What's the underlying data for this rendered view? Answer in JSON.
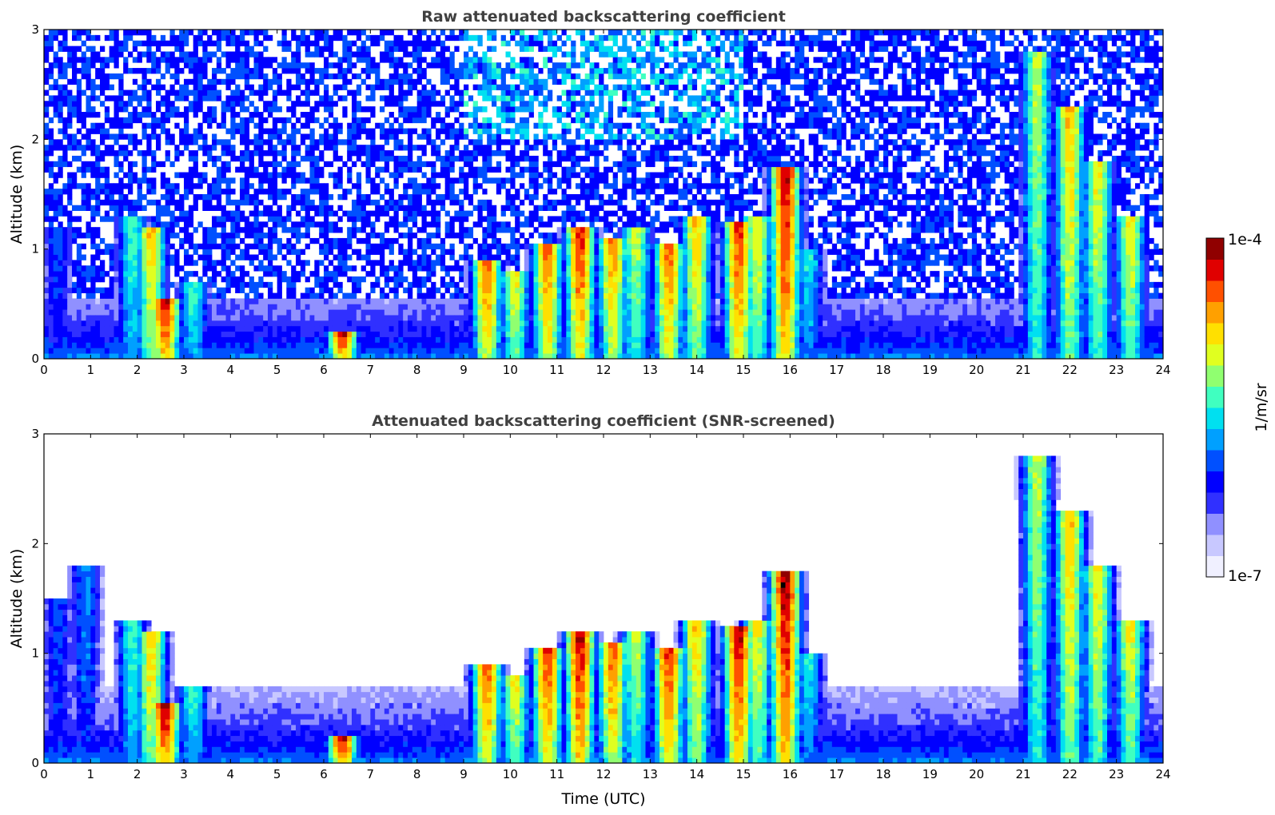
{
  "chart_data": [
    {
      "type": "heatmap",
      "title": "Raw attenuated backscattering coefficient",
      "xlabel": "",
      "ylabel": "Altitude (km)",
      "xlim": [
        0,
        24
      ],
      "ylim": [
        0,
        3
      ],
      "xticks": [
        0,
        1,
        2,
        3,
        4,
        5,
        6,
        7,
        8,
        9,
        10,
        11,
        12,
        13,
        14,
        15,
        16,
        17,
        18,
        19,
        20,
        21,
        22,
        23,
        24
      ],
      "yticks": [
        0,
        1,
        2,
        3
      ],
      "screened": false,
      "features": [
        {
          "t": 0.3,
          "top": 1.2,
          "intensity": 0.35
        },
        {
          "t": 1.9,
          "top": 1.3,
          "intensity": 0.55
        },
        {
          "t": 2.3,
          "top": 1.2,
          "intensity": 0.75
        },
        {
          "t": 2.6,
          "top": 0.55,
          "intensity": 0.95
        },
        {
          "t": 3.2,
          "top": 0.7,
          "intensity": 0.55
        },
        {
          "t": 6.4,
          "top": 0.25,
          "intensity": 0.95
        },
        {
          "t": 9.5,
          "top": 0.9,
          "intensity": 0.85
        },
        {
          "t": 10.1,
          "top": 0.8,
          "intensity": 0.7
        },
        {
          "t": 10.8,
          "top": 1.05,
          "intensity": 0.85
        },
        {
          "t": 11.5,
          "top": 1.2,
          "intensity": 0.9
        },
        {
          "t": 12.2,
          "top": 1.1,
          "intensity": 0.8
        },
        {
          "t": 12.7,
          "top": 1.2,
          "intensity": 0.65
        },
        {
          "t": 13.4,
          "top": 1.05,
          "intensity": 0.85
        },
        {
          "t": 14.0,
          "top": 1.3,
          "intensity": 0.75
        },
        {
          "t": 14.9,
          "top": 1.25,
          "intensity": 0.9
        },
        {
          "t": 15.3,
          "top": 1.3,
          "intensity": 0.7
        },
        {
          "t": 15.9,
          "top": 1.75,
          "intensity": 0.95
        },
        {
          "t": 16.4,
          "top": 1.0,
          "intensity": 0.5
        },
        {
          "t": 21.3,
          "top": 2.8,
          "intensity": 0.65
        },
        {
          "t": 22.0,
          "top": 2.3,
          "intensity": 0.75
        },
        {
          "t": 22.6,
          "top": 1.8,
          "intensity": 0.7
        },
        {
          "t": 23.3,
          "top": 1.3,
          "intensity": 0.7
        }
      ]
    },
    {
      "type": "heatmap",
      "title": "Attenuated backscattering coefficient (SNR-screened)",
      "xlabel": "Time (UTC)",
      "ylabel": "Altitude (km)",
      "xlim": [
        0,
        24
      ],
      "ylim": [
        0,
        3
      ],
      "xticks": [
        0,
        1,
        2,
        3,
        4,
        5,
        6,
        7,
        8,
        9,
        10,
        11,
        12,
        13,
        14,
        15,
        16,
        17,
        18,
        19,
        20,
        21,
        22,
        23,
        24
      ],
      "yticks": [
        0,
        1,
        2,
        3
      ],
      "screened": true,
      "features": [
        {
          "t": 0.3,
          "top": 1.5,
          "intensity": 0.35
        },
        {
          "t": 0.9,
          "top": 1.8,
          "intensity": 0.4
        },
        {
          "t": 1.9,
          "top": 1.3,
          "intensity": 0.55
        },
        {
          "t": 2.3,
          "top": 1.2,
          "intensity": 0.75
        },
        {
          "t": 2.6,
          "top": 0.55,
          "intensity": 0.98
        },
        {
          "t": 3.2,
          "top": 0.7,
          "intensity": 0.55
        },
        {
          "t": 6.4,
          "top": 0.25,
          "intensity": 0.98
        },
        {
          "t": 9.5,
          "top": 0.9,
          "intensity": 0.85
        },
        {
          "t": 10.1,
          "top": 0.8,
          "intensity": 0.7
        },
        {
          "t": 10.8,
          "top": 1.05,
          "intensity": 0.9
        },
        {
          "t": 11.5,
          "top": 1.2,
          "intensity": 0.95
        },
        {
          "t": 12.2,
          "top": 1.1,
          "intensity": 0.85
        },
        {
          "t": 12.7,
          "top": 1.2,
          "intensity": 0.65
        },
        {
          "t": 13.4,
          "top": 1.05,
          "intensity": 0.9
        },
        {
          "t": 14.0,
          "top": 1.3,
          "intensity": 0.75
        },
        {
          "t": 14.9,
          "top": 1.25,
          "intensity": 0.95
        },
        {
          "t": 15.3,
          "top": 1.3,
          "intensity": 0.7
        },
        {
          "t": 15.9,
          "top": 1.75,
          "intensity": 0.98
        },
        {
          "t": 16.4,
          "top": 1.0,
          "intensity": 0.5
        },
        {
          "t": 21.3,
          "top": 2.8,
          "intensity": 0.65
        },
        {
          "t": 22.0,
          "top": 2.3,
          "intensity": 0.75
        },
        {
          "t": 22.6,
          "top": 1.8,
          "intensity": 0.7
        },
        {
          "t": 23.3,
          "top": 1.3,
          "intensity": 0.7
        }
      ]
    }
  ],
  "colorbar": {
    "label": "1/m/sr",
    "max_label": "1e-4",
    "min_label": "1e-7",
    "colors": [
      "#f0f0ff",
      "#c8c8ff",
      "#9090ff",
      "#3030ff",
      "#0000ff",
      "#0050ff",
      "#00a0ff",
      "#00e0f0",
      "#40ffc0",
      "#90ff70",
      "#e0ff20",
      "#ffe000",
      "#ffa000",
      "#ff5000",
      "#e00000",
      "#900000"
    ]
  }
}
